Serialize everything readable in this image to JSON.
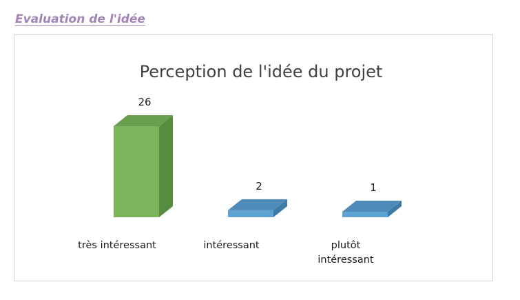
{
  "section": {
    "heading": "Evaluation de l'idée"
  },
  "chart_data": {
    "type": "bar",
    "title": "Perception de l'idée du projet",
    "categories": [
      "très intéressant",
      "intéressant",
      "plutôt intéressant"
    ],
    "values": [
      26,
      2,
      1
    ],
    "data_labels": [
      "26",
      "2",
      "1"
    ],
    "xlabel": "",
    "ylabel": "",
    "ylim": [
      0,
      26
    ],
    "three_d": true,
    "grid": false,
    "legend": "none",
    "colors": {
      "front": [
        "#7ab55c",
        "#5ea1d3",
        "#5ea1d3"
      ],
      "side": [
        "#558c3e",
        "#3d7aa8",
        "#3d7aa8"
      ],
      "top": [
        "#6a9e4f",
        "#4f8bb8",
        "#4f8bb8"
      ]
    }
  }
}
